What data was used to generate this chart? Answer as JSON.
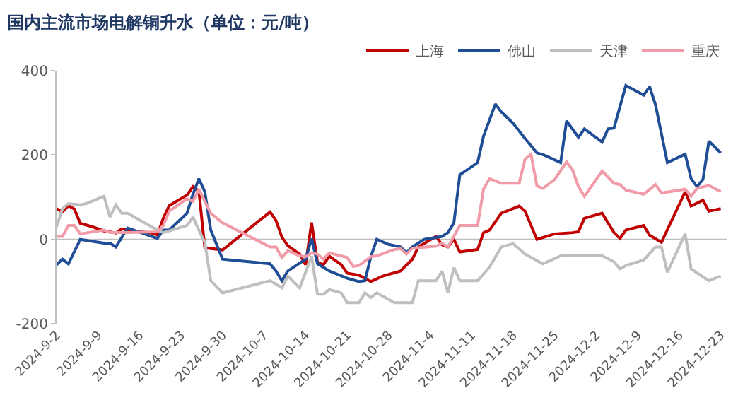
{
  "chart_data": {
    "type": "line",
    "title": "国内主流市场电解铜升水（单位：元/吨）",
    "series": [
      {
        "name": "上海",
        "color": "#c00000",
        "x": [
          "2024-09-02",
          "2024-09-03",
          "2024-09-04",
          "2024-09-05",
          "2024-09-06",
          "2024-09-08",
          "2024-09-10",
          "2024-09-12",
          "2024-09-13",
          "2024-09-15",
          "2024-09-18",
          "2024-09-19",
          "2024-09-20",
          "2024-09-21",
          "2024-09-24",
          "2024-09-25",
          "2024-09-26",
          "2024-09-27",
          "2024-09-30",
          "2024-10-08",
          "2024-10-09",
          "2024-10-10",
          "2024-10-11",
          "2024-10-13",
          "2024-10-14",
          "2024-10-15",
          "2024-10-16",
          "2024-10-17",
          "2024-10-18",
          "2024-10-20",
          "2024-10-21",
          "2024-10-23",
          "2024-10-25",
          "2024-10-27",
          "2024-10-30",
          "2024-11-01",
          "2024-11-02",
          "2024-11-05",
          "2024-11-06",
          "2024-11-07",
          "2024-11-08",
          "2024-11-09",
          "2024-11-12",
          "2024-11-13",
          "2024-11-14",
          "2024-11-16",
          "2024-11-19",
          "2024-11-20",
          "2024-11-22",
          "2024-11-25",
          "2024-11-28",
          "2024-11-29",
          "2024-11-30",
          "2024-12-03",
          "2024-12-05",
          "2024-12-06",
          "2024-12-07",
          "2024-12-10",
          "2024-12-11",
          "2024-12-13",
          "2024-12-17",
          "2024-12-18",
          "2024-12-20",
          "2024-12-21",
          "2024-12-23"
        ],
        "values": [
          73,
          65,
          80,
          72,
          38,
          30,
          20,
          15,
          25,
          20,
          15,
          10,
          50,
          80,
          105,
          125,
          115,
          -20,
          -25,
          65,
          45,
          5,
          -15,
          -35,
          -60,
          40,
          -55,
          -60,
          -40,
          -60,
          -80,
          -85,
          -100,
          -87,
          -75,
          -47,
          -18,
          7,
          -13,
          -18,
          0,
          -30,
          -24,
          16,
          22,
          62,
          79,
          67,
          0,
          13,
          16,
          18,
          50,
          62,
          16,
          2,
          22,
          33,
          10,
          -7,
          113,
          79,
          93,
          67,
          73
        ]
      },
      {
        "name": "佛山",
        "color": "#1f4e96",
        "x": [
          "2024-09-02",
          "2024-09-03",
          "2024-09-04",
          "2024-09-06",
          "2024-09-10",
          "2024-09-11",
          "2024-09-12",
          "2024-09-14",
          "2024-09-19",
          "2024-09-20",
          "2024-09-21",
          "2024-09-24",
          "2024-09-25",
          "2024-09-26",
          "2024-09-27",
          "2024-09-28",
          "2024-09-30",
          "2024-10-08",
          "2024-10-09",
          "2024-10-10",
          "2024-10-11",
          "2024-10-14",
          "2024-10-15",
          "2024-10-16",
          "2024-10-18",
          "2024-10-21",
          "2024-10-23",
          "2024-10-24",
          "2024-10-25",
          "2024-10-26",
          "2024-10-28",
          "2024-10-30",
          "2024-10-31",
          "2024-11-01",
          "2024-11-03",
          "2024-11-06",
          "2024-11-07",
          "2024-11-08",
          "2024-11-09",
          "2024-11-12",
          "2024-11-13",
          "2024-11-15",
          "2024-11-16",
          "2024-11-18",
          "2024-11-20",
          "2024-11-22",
          "2024-11-23",
          "2024-11-26",
          "2024-11-27",
          "2024-11-29",
          "2024-11-30",
          "2024-12-03",
          "2024-12-04",
          "2024-12-05",
          "2024-12-07",
          "2024-12-10",
          "2024-12-11",
          "2024-12-12",
          "2024-12-14",
          "2024-12-17",
          "2024-12-18",
          "2024-12-19",
          "2024-12-20",
          "2024-12-21",
          "2024-12-23"
        ],
        "values": [
          -60,
          -47,
          -58,
          0,
          -9,
          -9,
          -18,
          27,
          2,
          22,
          22,
          62,
          107,
          144,
          113,
          22,
          -47,
          -58,
          -75,
          -98,
          -75,
          -47,
          2,
          -58,
          -75,
          -92,
          -100,
          -98,
          -41,
          0,
          -12,
          -18,
          -32,
          -18,
          0,
          7,
          16,
          39,
          153,
          182,
          245,
          321,
          302,
          275,
          239,
          205,
          201,
          182,
          281,
          242,
          262,
          231,
          262,
          264,
          365,
          342,
          362,
          319,
          182,
          202,
          144,
          125,
          142,
          233,
          205
        ]
      },
      {
        "name": "天津",
        "color": "#bfbfbf",
        "x": [
          "2024-09-02",
          "2024-09-03",
          "2024-09-04",
          "2024-09-06",
          "2024-09-07",
          "2024-09-10",
          "2024-09-11",
          "2024-09-12",
          "2024-09-13",
          "2024-09-14",
          "2024-09-19",
          "2024-09-20",
          "2024-09-24",
          "2024-09-25",
          "2024-09-26",
          "2024-09-27",
          "2024-09-28",
          "2024-09-30",
          "2024-10-08",
          "2024-10-10",
          "2024-10-11",
          "2024-10-13",
          "2024-10-15",
          "2024-10-16",
          "2024-10-17",
          "2024-10-18",
          "2024-10-20",
          "2024-10-21",
          "2024-10-23",
          "2024-10-24",
          "2024-10-25",
          "2024-10-26",
          "2024-10-29",
          "2024-11-01",
          "2024-11-02",
          "2024-11-05",
          "2024-11-06",
          "2024-11-07",
          "2024-11-08",
          "2024-11-09",
          "2024-11-12",
          "2024-11-14",
          "2024-11-16",
          "2024-11-18",
          "2024-11-20",
          "2024-11-23",
          "2024-11-26",
          "2024-12-01",
          "2024-12-03",
          "2024-12-05",
          "2024-12-06",
          "2024-12-07",
          "2024-12-10",
          "2024-12-12",
          "2024-12-13",
          "2024-12-14",
          "2024-12-17",
          "2024-12-18",
          "2024-12-21",
          "2024-12-23"
        ],
        "values": [
          30,
          73,
          85,
          82,
          85,
          102,
          53,
          82,
          62,
          62,
          22,
          16,
          33,
          53,
          22,
          -7,
          -98,
          -127,
          -98,
          -115,
          -87,
          -115,
          -40,
          -130,
          -130,
          -119,
          -127,
          -150,
          -150,
          -127,
          -138,
          -127,
          -150,
          -150,
          -98,
          -98,
          -75,
          -127,
          -67,
          -98,
          -98,
          -66,
          -18,
          -10,
          -35,
          -58,
          -39,
          -39,
          -39,
          -53,
          -70,
          -62,
          -49,
          -18,
          -18,
          -78,
          13,
          -70,
          -98,
          -87
        ]
      },
      {
        "name": "重庆",
        "color": "#f19ba8",
        "x": [
          "2024-09-02",
          "2024-09-03",
          "2024-09-04",
          "2024-09-05",
          "2024-09-06",
          "2024-09-10",
          "2024-09-11",
          "2024-09-14",
          "2024-09-19",
          "2024-09-20",
          "2024-09-21",
          "2024-09-24",
          "2024-09-25",
          "2024-09-26",
          "2024-09-27",
          "2024-09-28",
          "2024-09-30",
          "2024-10-08",
          "2024-10-09",
          "2024-10-10",
          "2024-10-11",
          "2024-10-13",
          "2024-10-14",
          "2024-10-15",
          "2024-10-16",
          "2024-10-17",
          "2024-10-18",
          "2024-10-21",
          "2024-10-22",
          "2024-10-23",
          "2024-10-25",
          "2024-10-26",
          "2024-10-29",
          "2024-10-30",
          "2024-10-31",
          "2024-11-01",
          "2024-11-05",
          "2024-11-06",
          "2024-11-07",
          "2024-11-09",
          "2024-11-12",
          "2024-11-13",
          "2024-11-14",
          "2024-11-16",
          "2024-11-19",
          "2024-11-20",
          "2024-11-21",
          "2024-11-22",
          "2024-11-23",
          "2024-11-25",
          "2024-11-27",
          "2024-11-28",
          "2024-11-29",
          "2024-11-30",
          "2024-12-03",
          "2024-12-05",
          "2024-12-06",
          "2024-12-07",
          "2024-12-10",
          "2024-12-12",
          "2024-12-13",
          "2024-12-17",
          "2024-12-18",
          "2024-12-19",
          "2024-12-21",
          "2024-12-23"
        ],
        "values": [
          7,
          7,
          33,
          33,
          13,
          22,
          16,
          16,
          18,
          33,
          67,
          96,
          90,
          119,
          90,
          62,
          39,
          -18,
          -18,
          -43,
          -27,
          -39,
          -41,
          -32,
          -35,
          -47,
          -32,
          -43,
          -64,
          -62,
          -41,
          -39,
          -24,
          -22,
          -35,
          -21,
          -16,
          -9,
          -18,
          33,
          33,
          119,
          144,
          133,
          133,
          190,
          202,
          127,
          121,
          142,
          184,
          165,
          125,
          102,
          162,
          133,
          130,
          117,
          107,
          130,
          110,
          119,
          102,
          121,
          128,
          113
        ]
      }
    ],
    "xlim": [
      "2024-09-02",
      "2024-12-24"
    ],
    "xticks": [
      {
        "value": "2024-09-02",
        "label": "2024-9-2"
      },
      {
        "value": "2024-09-09",
        "label": "2024-9-9"
      },
      {
        "value": "2024-09-16",
        "label": "2024-9-16"
      },
      {
        "value": "2024-09-23",
        "label": "2024-9-23"
      },
      {
        "value": "2024-09-30",
        "label": "2024-9-30"
      },
      {
        "value": "2024-10-07",
        "label": "2024-10-7"
      },
      {
        "value": "2024-10-14",
        "label": "2024-10-14"
      },
      {
        "value": "2024-10-21",
        "label": "2024-10-21"
      },
      {
        "value": "2024-10-28",
        "label": "2024-10-28"
      },
      {
        "value": "2024-11-04",
        "label": "2024-11-4"
      },
      {
        "value": "2024-11-11",
        "label": "2024-11-11"
      },
      {
        "value": "2024-11-18",
        "label": "2024-11-18"
      },
      {
        "value": "2024-11-25",
        "label": "2024-11-25"
      },
      {
        "value": "2024-12-02",
        "label": "2024-12-2"
      },
      {
        "value": "2024-12-09",
        "label": "2024-12-9"
      },
      {
        "value": "2024-12-16",
        "label": "2024-12-16"
      },
      {
        "value": "2024-12-23",
        "label": "2024-12-23"
      }
    ],
    "ylim": [
      -200,
      400
    ],
    "yticks": [
      -200,
      0,
      200,
      400
    ],
    "ref_lines": [
      {
        "axis": "y",
        "value": 0,
        "color": "#bfbfbf"
      }
    ],
    "grid": false,
    "legend": "top right",
    "marker": "none",
    "line_style": "solid"
  }
}
